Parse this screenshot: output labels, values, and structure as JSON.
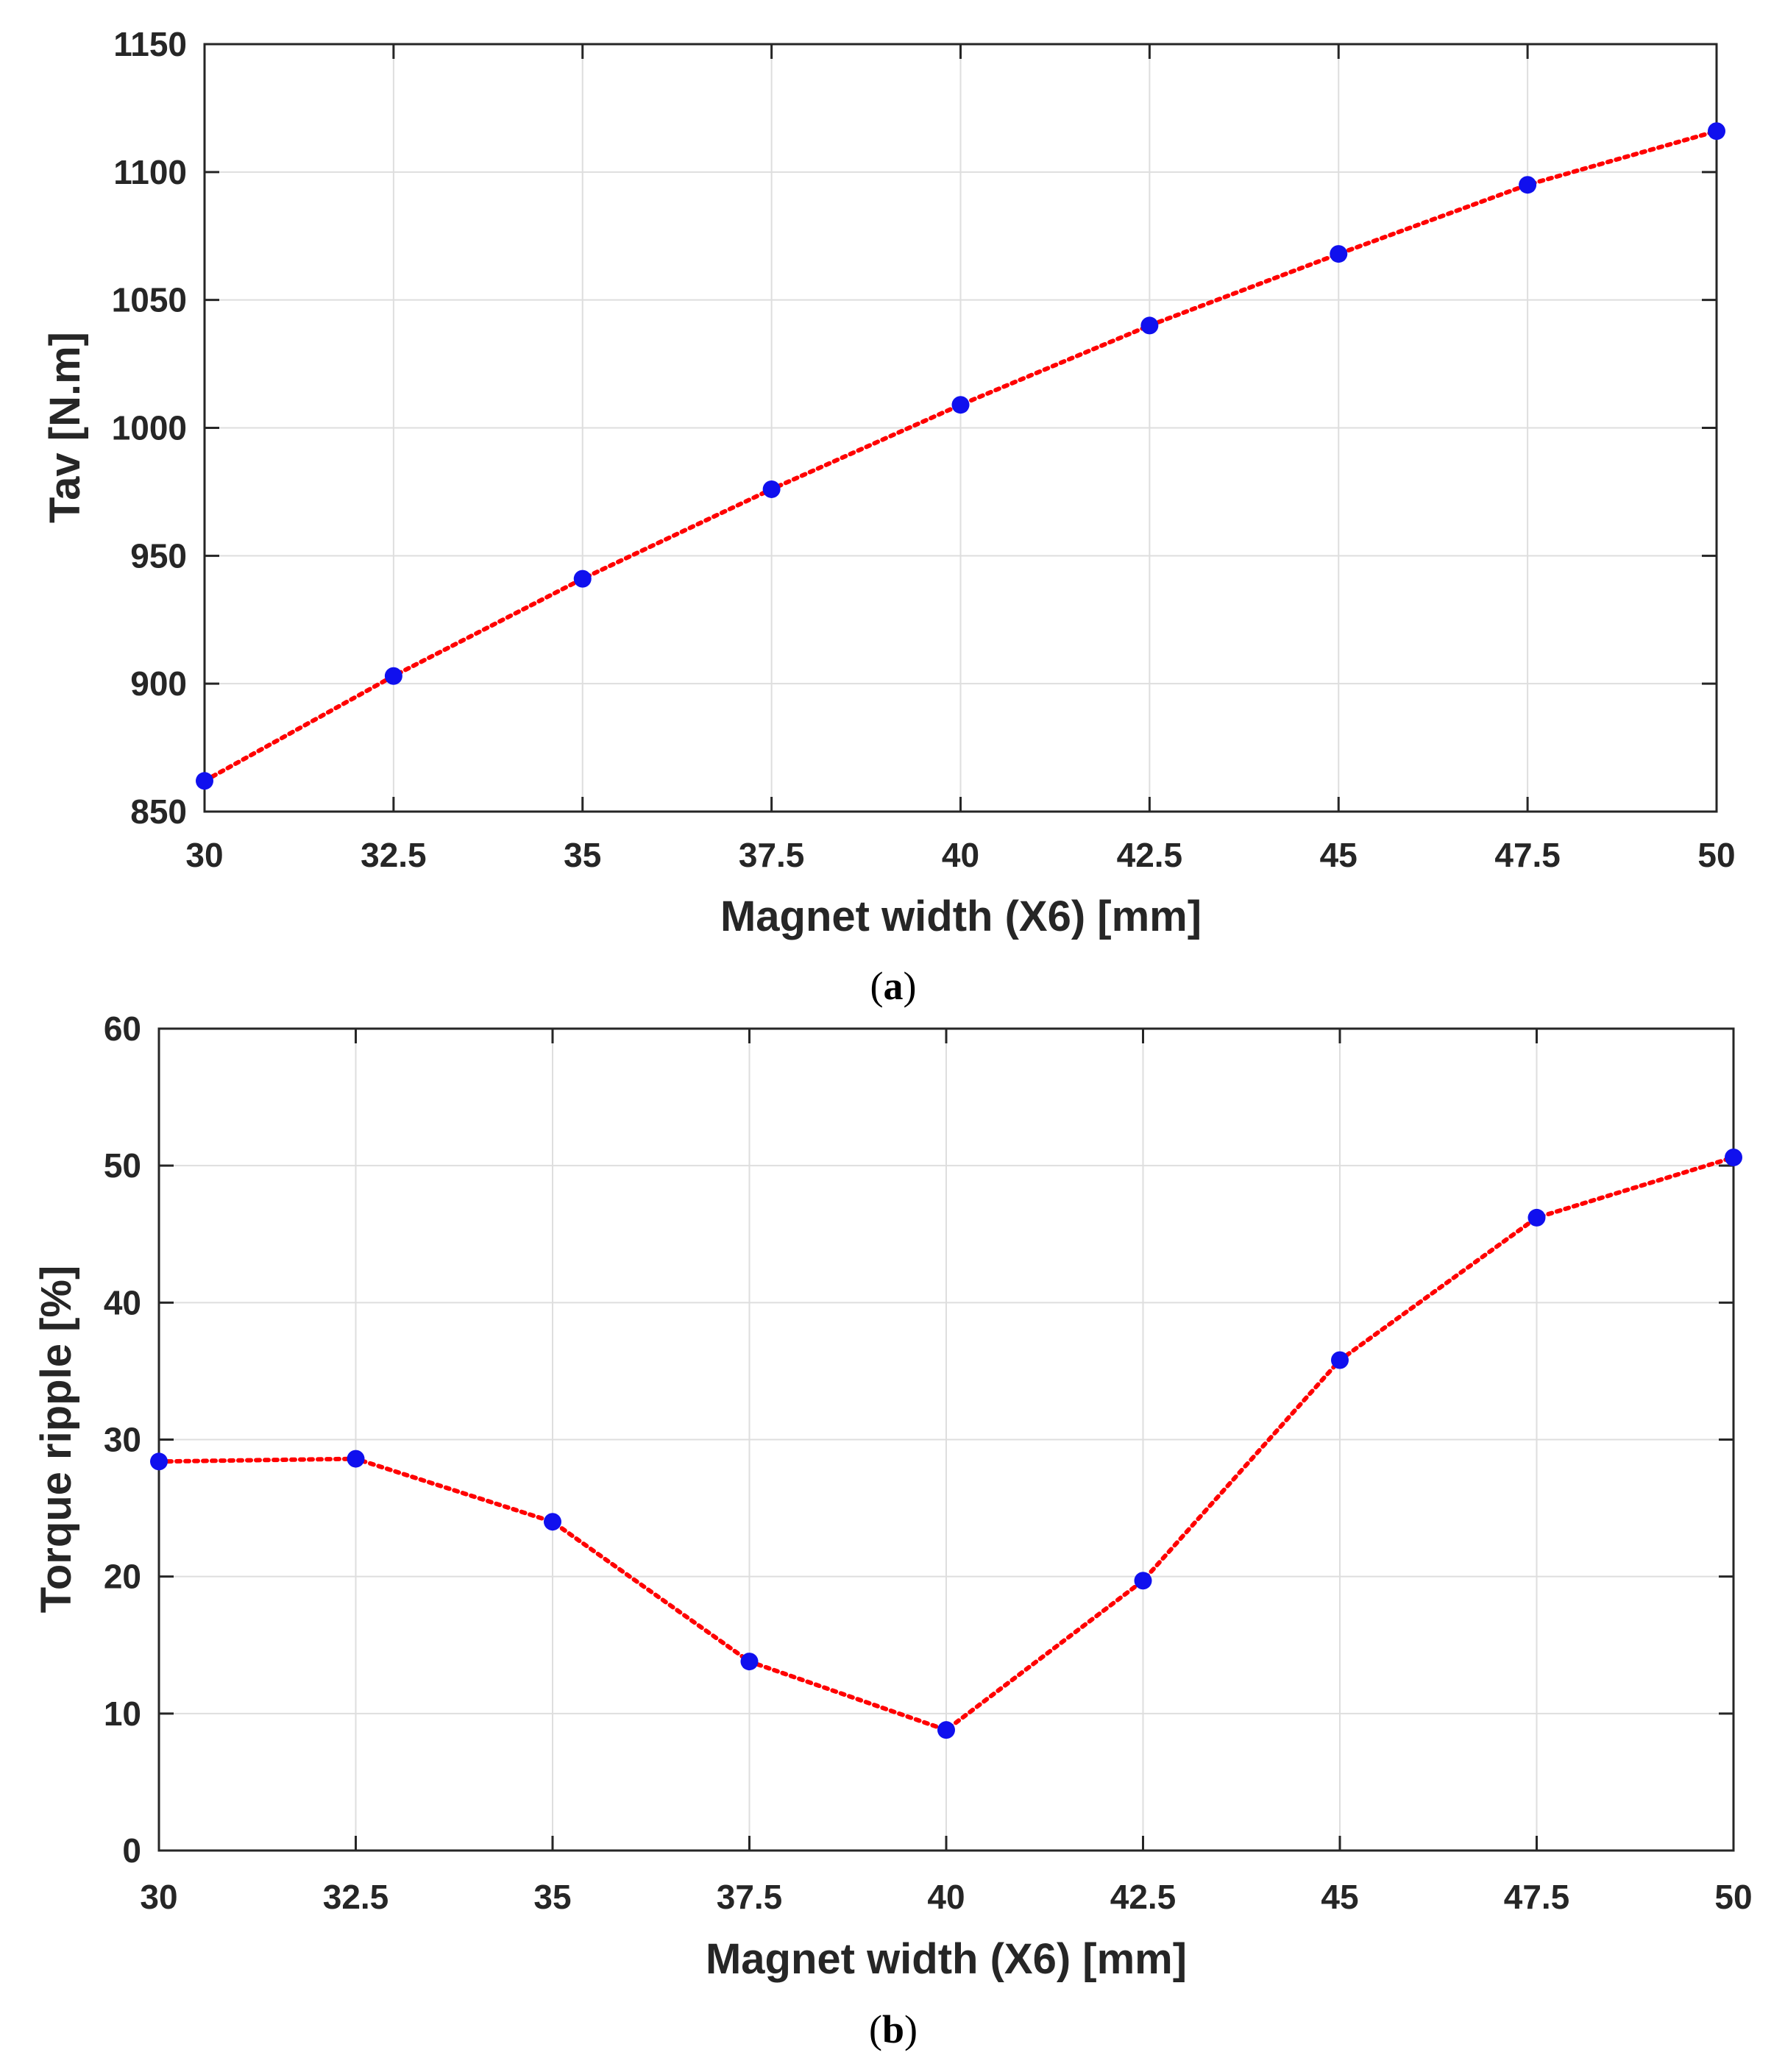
{
  "colors": {
    "line": "#ff0000",
    "marker": "#1010ee",
    "axes": "#262626",
    "grid": "#dedede"
  },
  "chart_data": [
    {
      "id": "a",
      "type": "line",
      "caption_letter": "a",
      "xlabel": "Magnet width (X6) [mm]",
      "ylabel": "Tav [N.m]",
      "xlim": [
        30,
        50
      ],
      "ylim": [
        850,
        1150
      ],
      "grid": true,
      "x_ticks": [
        30,
        32.5,
        35,
        37.5,
        40,
        42.5,
        45,
        47.5,
        50
      ],
      "x_tick_labels": [
        "30",
        "32.5",
        "35",
        "37.5",
        "40",
        "42.5",
        "45",
        "47.5",
        "50"
      ],
      "y_ticks": [
        850,
        900,
        950,
        1000,
        1050,
        1100,
        1150
      ],
      "y_tick_labels": [
        "850",
        "900",
        "950",
        "1000",
        "1050",
        "1100",
        "1150"
      ],
      "series": [
        {
          "name": "Tav",
          "x": [
            30,
            32.5,
            35,
            37.5,
            40,
            42.5,
            45,
            47.5,
            50
          ],
          "values": [
            862,
            903,
            941,
            976,
            1009,
            1040,
            1068,
            1095,
            1116
          ]
        }
      ]
    },
    {
      "id": "b",
      "type": "line",
      "caption_letter": "b",
      "xlabel": "Magnet width (X6) [mm]",
      "ylabel": "Torque ripple [%]",
      "xlim": [
        30,
        50
      ],
      "ylim": [
        0,
        60
      ],
      "grid": true,
      "x_ticks": [
        30,
        32.5,
        35,
        37.5,
        40,
        42.5,
        45,
        47.5,
        50
      ],
      "x_tick_labels": [
        "30",
        "32.5",
        "35",
        "37.5",
        "40",
        "42.5",
        "45",
        "47.5",
        "50"
      ],
      "y_ticks": [
        0,
        10,
        20,
        30,
        40,
        50,
        60
      ],
      "y_tick_labels": [
        "0",
        "10",
        "20",
        "30",
        "40",
        "50",
        "60"
      ],
      "series": [
        {
          "name": "Torque ripple",
          "x": [
            30,
            32.5,
            35,
            37.5,
            40,
            42.5,
            45,
            47.5,
            50
          ],
          "values": [
            28.4,
            28.6,
            24.0,
            13.8,
            8.8,
            19.7,
            35.8,
            46.2,
            50.6
          ]
        }
      ]
    }
  ]
}
